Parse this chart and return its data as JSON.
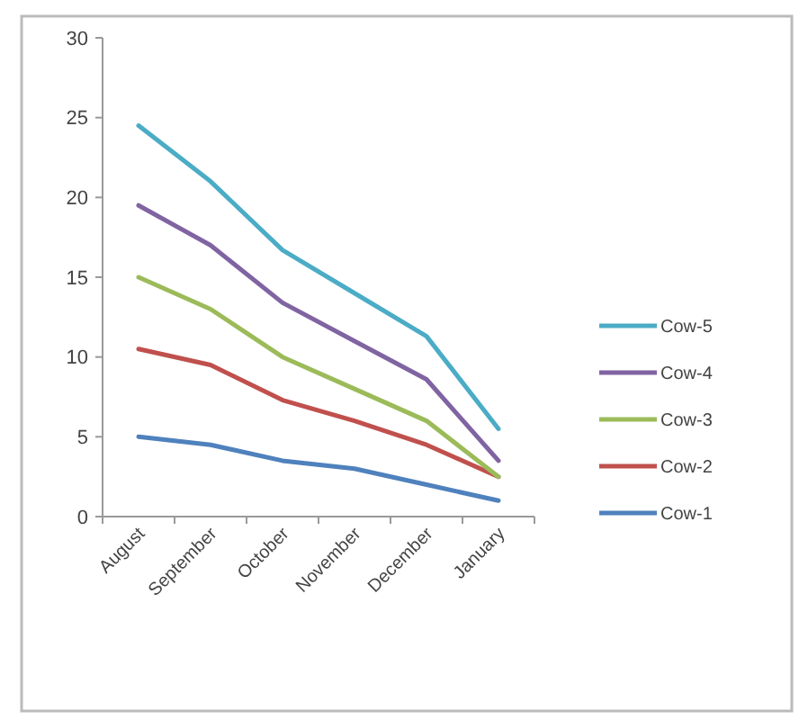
{
  "chart_data": {
    "type": "line",
    "categories": [
      "August",
      "September",
      "October",
      "November",
      "December",
      "January"
    ],
    "series": [
      {
        "name": "Cow-1",
        "color": "#4f81bd",
        "values": [
          5,
          4.5,
          3.5,
          3,
          2,
          1
        ]
      },
      {
        "name": "Cow-2",
        "color": "#c0504d",
        "values": [
          10.5,
          9.5,
          7.3,
          6,
          4.5,
          2.5
        ]
      },
      {
        "name": "Cow-3",
        "color": "#9bbb59",
        "values": [
          15,
          13,
          10,
          8,
          6,
          2.5
        ]
      },
      {
        "name": "Cow-4",
        "color": "#8064a2",
        "values": [
          19.5,
          17,
          13.4,
          11,
          8.6,
          3.5
        ]
      },
      {
        "name": "Cow-5",
        "color": "#4bacc6",
        "values": [
          24.5,
          21,
          16.7,
          14,
          11.3,
          5.5
        ]
      }
    ],
    "ylim": [
      0,
      30
    ],
    "yticks": [
      0,
      5,
      10,
      15,
      20,
      25,
      30
    ],
    "grid": false,
    "legend": "right",
    "marker": "none",
    "line_style": "solid"
  }
}
